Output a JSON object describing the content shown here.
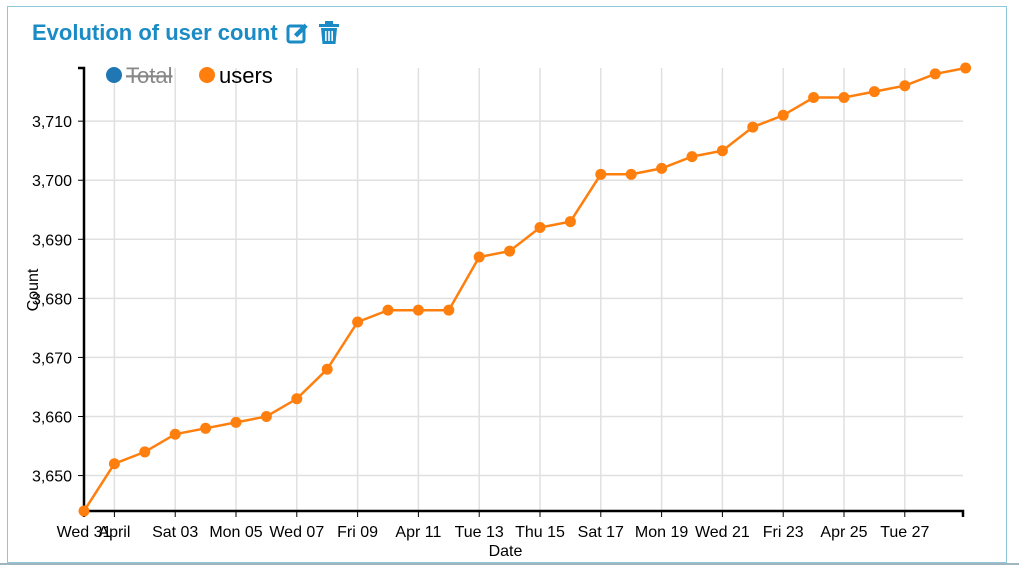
{
  "header": {
    "title": "Evolution of user count",
    "edit_icon": "edit-icon",
    "delete_icon": "trash-icon",
    "accent": "#1a8bc5"
  },
  "chart_data": {
    "type": "line",
    "xlabel": "Date",
    "ylabel": "Count",
    "ylim": [
      3644,
      3719
    ],
    "y_ticks": [
      3650,
      3660,
      3670,
      3680,
      3690,
      3700,
      3710
    ],
    "grid": true,
    "legend_placement": "top-left",
    "x_range": [
      "2021-03-31",
      "2021-04-28"
    ],
    "x_ticks": [
      {
        "date": "2021-03-31",
        "label": "Wed 31"
      },
      {
        "date": "2021-04-01",
        "label": "April"
      },
      {
        "date": "2021-04-03",
        "label": "Sat 03"
      },
      {
        "date": "2021-04-05",
        "label": "Mon 05"
      },
      {
        "date": "2021-04-07",
        "label": "Wed 07"
      },
      {
        "date": "2021-04-09",
        "label": "Fri 09"
      },
      {
        "date": "2021-04-11",
        "label": "Apr 11"
      },
      {
        "date": "2021-04-13",
        "label": "Tue 13"
      },
      {
        "date": "2021-04-15",
        "label": "Thu 15"
      },
      {
        "date": "2021-04-17",
        "label": "Sat 17"
      },
      {
        "date": "2021-04-19",
        "label": "Mon 19"
      },
      {
        "date": "2021-04-21",
        "label": "Wed 21"
      },
      {
        "date": "2021-04-23",
        "label": "Fri 23"
      },
      {
        "date": "2021-04-25",
        "label": "Apr 25"
      },
      {
        "date": "2021-04-27",
        "label": "Tue 27"
      }
    ],
    "series": [
      {
        "name": "Total",
        "color": "#1f77b4",
        "disabled": true,
        "x": [],
        "y": []
      },
      {
        "name": "users",
        "color": "#ff7f0e",
        "disabled": false,
        "x": [
          "2021-03-31",
          "2021-04-01",
          "2021-04-02",
          "2021-04-03",
          "2021-04-04",
          "2021-04-05",
          "2021-04-06",
          "2021-04-07",
          "2021-04-08",
          "2021-04-09",
          "2021-04-10",
          "2021-04-11",
          "2021-04-12",
          "2021-04-13",
          "2021-04-14",
          "2021-04-15",
          "2021-04-16",
          "2021-04-17",
          "2021-04-18",
          "2021-04-19",
          "2021-04-20",
          "2021-04-21",
          "2021-04-22",
          "2021-04-23",
          "2021-04-24",
          "2021-04-25",
          "2021-04-26",
          "2021-04-27",
          "2021-04-28",
          "2021-04-29"
        ],
        "y": [
          3644,
          3652,
          3654,
          3657,
          3658,
          3659,
          3660,
          3663,
          3668,
          3676,
          3678,
          3678,
          3678,
          3687,
          3688,
          3692,
          3693,
          3701,
          3701,
          3702,
          3704,
          3705,
          3709,
          3711,
          3714,
          3714,
          3715,
          3716,
          3718,
          3719
        ]
      }
    ]
  }
}
